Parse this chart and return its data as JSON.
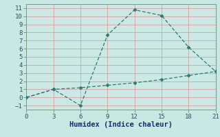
{
  "xlabel": "Humidex (Indice chaleur)",
  "line1_x": [
    0,
    3,
    6,
    9,
    12,
    15,
    18,
    21
  ],
  "line1_y": [
    0,
    1,
    -1,
    7.7,
    10.8,
    10.1,
    6.2,
    3.2
  ],
  "line2_x": [
    0,
    3,
    6,
    9,
    12,
    15,
    18,
    21
  ],
  "line2_y": [
    0,
    1,
    1.2,
    1.5,
    1.8,
    2.2,
    2.7,
    3.2
  ],
  "line_color": "#2d7b6f",
  "bg_color": "#c8e8e4",
  "plot_bg_color": "#cce8e4",
  "grid_color": "#d4a0a0",
  "xlim": [
    0,
    21
  ],
  "ylim": [
    -1.5,
    11.5
  ],
  "xticks": [
    0,
    3,
    6,
    9,
    12,
    15,
    18,
    21
  ],
  "yticks": [
    -1,
    0,
    1,
    2,
    3,
    4,
    5,
    6,
    7,
    8,
    9,
    10,
    11
  ],
  "tick_fontsize": 6.5,
  "xlabel_fontsize": 7.5,
  "tick_color": "#2d4d5e",
  "xlabel_color": "#1a2a6e"
}
